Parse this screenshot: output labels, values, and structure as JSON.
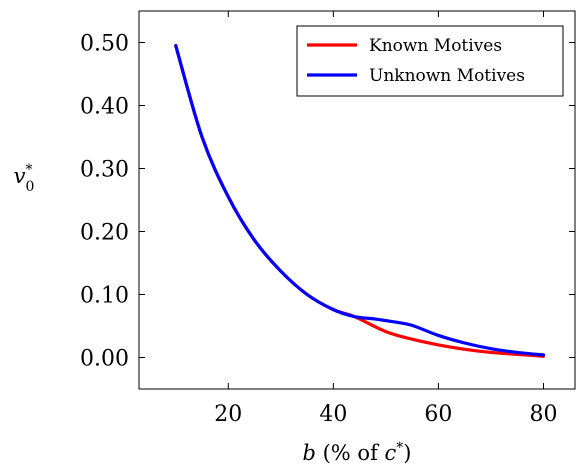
{
  "chart_data": {
    "type": "line",
    "title": "",
    "xlabel": "b (% of c*)",
    "ylabel": "v0*",
    "xlim": [
      3,
      86
    ],
    "ylim": [
      -0.05,
      0.55
    ],
    "xticks": [
      20,
      40,
      60,
      80
    ],
    "yticks": [
      0.0,
      0.1,
      0.2,
      0.3,
      0.4,
      0.5
    ],
    "xtick_labels": [
      "20",
      "40",
      "60",
      "80"
    ],
    "ytick_labels": [
      "0.00",
      "0.10",
      "0.20",
      "0.30",
      "0.40",
      "0.50"
    ],
    "grid": false,
    "legend_position": "top-right",
    "series": [
      {
        "name": "Known Motives",
        "color": "#ff0000",
        "x": [
          10,
          15,
          20,
          25,
          30,
          35,
          40,
          44,
          50,
          55,
          60,
          65,
          70,
          75,
          80
        ],
        "y": [
          0.495,
          0.35,
          0.255,
          0.186,
          0.137,
          0.1,
          0.076,
          0.065,
          0.041,
          0.029,
          0.02,
          0.013,
          0.008,
          0.005,
          0.002
        ]
      },
      {
        "name": "Unknown Motives",
        "color": "#0000ff",
        "x": [
          10,
          15,
          20,
          25,
          30,
          35,
          40,
          44,
          48,
          52,
          55,
          60,
          65,
          70,
          75,
          80
        ],
        "y": [
          0.495,
          0.35,
          0.255,
          0.186,
          0.137,
          0.1,
          0.076,
          0.065,
          0.061,
          0.056,
          0.051,
          0.035,
          0.023,
          0.014,
          0.008,
          0.004
        ]
      }
    ]
  }
}
